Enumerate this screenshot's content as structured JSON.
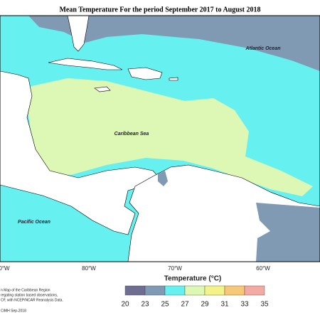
{
  "title": "Mean Temperature For the period September 2017 to August 2018",
  "labels": {
    "atlantic": "Atlantic Ocean",
    "caribbean": "Caribbean Sea",
    "pacific": "Pacific Ocean"
  },
  "longitudes": [
    "0°W",
    "80°W",
    "70°W",
    "60°W"
  ],
  "notes": [
    "n Map of the Caribbean Region",
    "regating station based observations,",
    "CF, with NCEP/NCAR Reanalysis Data.",
    "CIMH Sep-2018"
  ],
  "legend": {
    "title": "Temperature (°C)",
    "ticks": [
      20,
      23,
      25,
      27,
      29,
      31,
      33,
      35
    ],
    "colors": [
      "#6e6e92",
      "#7f9ab2",
      "#66f0f0",
      "#ddf7b4",
      "#f4f38a",
      "#f6c878",
      "#f2aaa2"
    ]
  }
}
